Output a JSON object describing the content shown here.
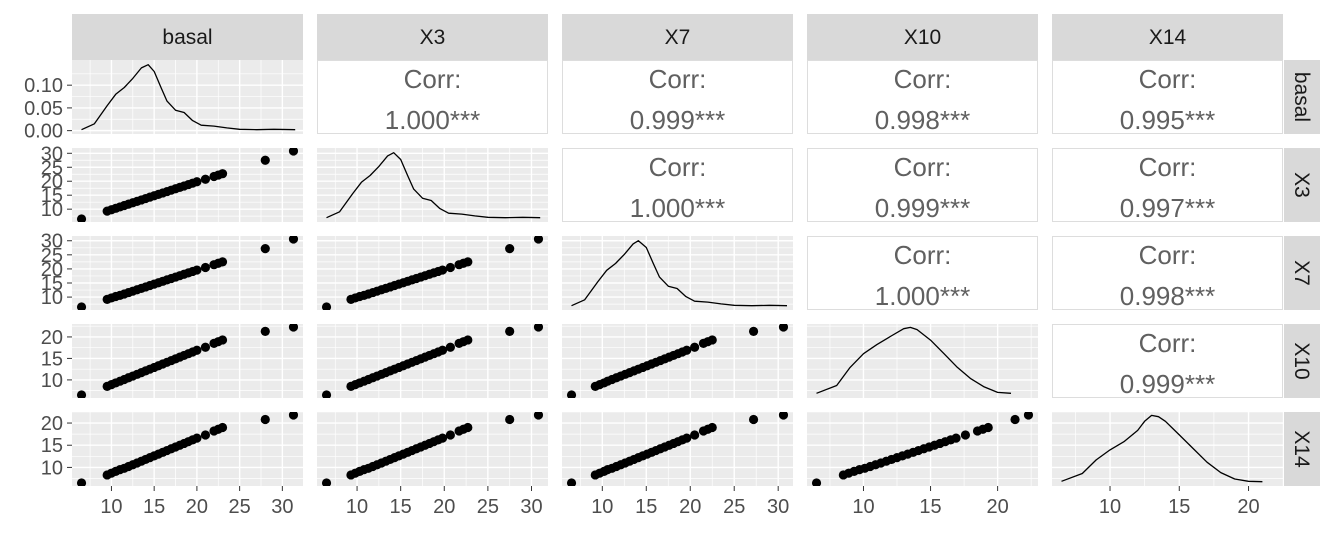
{
  "chart_data": {
    "type": "scatter-matrix",
    "variables": [
      "basal",
      "X3",
      "X7",
      "X10",
      "X14"
    ],
    "colors": {
      "panel_background": "#ebebeb",
      "grid": "#ffffff",
      "strip_background": "#d9d9d9",
      "strip_text": "#1a1a1a",
      "tick_text": "#4d4d4d",
      "corr_text": "#606060",
      "corr_border": "#dddddd",
      "points": "#000000",
      "density_line": "#000000"
    },
    "x_axis_ticks": {
      "basal": [
        "10",
        "15",
        "20",
        "25",
        "30"
      ],
      "X3": [
        "10",
        "15",
        "20",
        "25",
        "30"
      ],
      "X7": [
        "10",
        "15",
        "20",
        "25",
        "30"
      ],
      "X10": [
        "10",
        "15",
        "20"
      ],
      "X14": [
        "10",
        "15",
        "20"
      ]
    },
    "y_axis_ticks": {
      "basal": [
        "0.00",
        "0.05",
        "0.10"
      ],
      "X3": [
        "10",
        "15",
        "20",
        "25",
        "30"
      ],
      "X7": [
        "10",
        "15",
        "20",
        "25",
        "30"
      ],
      "X10": [
        "10",
        "15",
        "20"
      ],
      "X14": [
        "10",
        "15",
        "20"
      ]
    },
    "correlations": [
      {
        "row": "basal",
        "col": "X3",
        "label": "Corr:",
        "value": "1.000***"
      },
      {
        "row": "basal",
        "col": "X7",
        "label": "Corr:",
        "value": "0.999***"
      },
      {
        "row": "basal",
        "col": "X10",
        "label": "Corr:",
        "value": "0.998***"
      },
      {
        "row": "basal",
        "col": "X14",
        "label": "Corr:",
        "value": "0.995***"
      },
      {
        "row": "X3",
        "col": "X7",
        "label": "Corr:",
        "value": "1.000***"
      },
      {
        "row": "X3",
        "col": "X10",
        "label": "Corr:",
        "value": "0.999***"
      },
      {
        "row": "X3",
        "col": "X14",
        "label": "Corr:",
        "value": "0.997***"
      },
      {
        "row": "X7",
        "col": "X10",
        "label": "Corr:",
        "value": "1.000***"
      },
      {
        "row": "X7",
        "col": "X14",
        "label": "Corr:",
        "value": "0.998***"
      },
      {
        "row": "X10",
        "col": "X14",
        "label": "Corr:",
        "value": "0.999***"
      }
    ],
    "densities": [
      {
        "variable": "basal",
        "x": [
          6.5,
          8,
          9.5,
          10.5,
          11.5,
          12.5,
          13.5,
          14.3,
          15,
          15.8,
          16.5,
          17.5,
          18.5,
          19.5,
          20.5,
          22,
          23.5,
          25,
          27,
          29,
          31.5
        ],
        "y": [
          0.002,
          0.015,
          0.055,
          0.08,
          0.095,
          0.115,
          0.138,
          0.145,
          0.13,
          0.095,
          0.065,
          0.045,
          0.04,
          0.022,
          0.012,
          0.01,
          0.006,
          0.003,
          0.002,
          0.003,
          0.002
        ]
      },
      {
        "variable": "X3",
        "x": [
          6.5,
          8,
          9.5,
          10.5,
          11.5,
          12.5,
          13.5,
          14.2,
          15,
          15.8,
          16.5,
          17.5,
          18.5,
          19.5,
          20.5,
          22,
          23.5,
          25,
          27,
          29,
          31
        ],
        "y": [
          0.002,
          0.015,
          0.055,
          0.08,
          0.095,
          0.115,
          0.138,
          0.145,
          0.13,
          0.095,
          0.065,
          0.045,
          0.04,
          0.022,
          0.012,
          0.01,
          0.006,
          0.003,
          0.002,
          0.003,
          0.002
        ]
      },
      {
        "variable": "X7",
        "x": [
          6.5,
          8,
          9.5,
          10.5,
          11.5,
          12.5,
          13.5,
          14.1,
          15,
          15.8,
          16.5,
          17.5,
          18.5,
          19.5,
          20.5,
          22,
          23.5,
          25,
          27,
          29,
          31
        ],
        "y": [
          0.002,
          0.015,
          0.055,
          0.08,
          0.095,
          0.115,
          0.138,
          0.145,
          0.13,
          0.095,
          0.065,
          0.045,
          0.04,
          0.022,
          0.012,
          0.01,
          0.006,
          0.003,
          0.002,
          0.003,
          0.002
        ]
      },
      {
        "variable": "X10",
        "x": [
          6.5,
          8,
          9,
          10,
          11,
          12,
          13,
          13.5,
          14,
          15,
          16,
          17,
          18,
          19,
          20,
          21
        ],
        "y": [
          0.003,
          0.02,
          0.06,
          0.09,
          0.11,
          0.128,
          0.145,
          0.148,
          0.143,
          0.12,
          0.09,
          0.06,
          0.035,
          0.017,
          0.005,
          0.003
        ]
      },
      {
        "variable": "X14",
        "x": [
          6.5,
          8,
          9,
          10,
          11,
          12,
          12.5,
          13,
          13.5,
          14,
          15,
          16,
          17,
          18,
          19,
          20,
          21
        ],
        "y": [
          0.003,
          0.02,
          0.05,
          0.072,
          0.09,
          0.115,
          0.135,
          0.148,
          0.145,
          0.135,
          0.105,
          0.075,
          0.045,
          0.022,
          0.008,
          0.003,
          0.002
        ]
      }
    ],
    "observations": [
      {
        "basal": 6.5,
        "X3": 6.5,
        "X7": 6.5,
        "X10": 6.5,
        "X14": 6.5
      },
      {
        "basal": 9.5,
        "X3": 9.3,
        "X7": 9.2,
        "X10": 8.5,
        "X14": 8.3
      },
      {
        "basal": 10,
        "X3": 9.8,
        "X7": 9.7,
        "X10": 8.9,
        "X14": 8.7
      },
      {
        "basal": 10.5,
        "X3": 10.3,
        "X7": 10.2,
        "X10": 9.3,
        "X14": 9.1
      },
      {
        "basal": 11,
        "X3": 10.8,
        "X7": 10.6,
        "X10": 9.7,
        "X14": 9.5
      },
      {
        "basal": 11.5,
        "X3": 11.3,
        "X7": 11.1,
        "X10": 10.1,
        "X14": 9.8
      },
      {
        "basal": 12,
        "X3": 11.8,
        "X7": 11.6,
        "X10": 10.5,
        "X14": 10.2
      },
      {
        "basal": 12.5,
        "X3": 12.3,
        "X7": 12.1,
        "X10": 10.9,
        "X14": 10.6
      },
      {
        "basal": 13,
        "X3": 12.8,
        "X7": 12.6,
        "X10": 11.3,
        "X14": 11
      },
      {
        "basal": 13.5,
        "X3": 13.3,
        "X7": 13.1,
        "X10": 11.7,
        "X14": 11.4
      },
      {
        "basal": 14,
        "X3": 13.8,
        "X7": 13.6,
        "X10": 12.1,
        "X14": 11.8
      },
      {
        "basal": 14.5,
        "X3": 14.3,
        "X7": 14.1,
        "X10": 12.5,
        "X14": 12.2
      },
      {
        "basal": 15,
        "X3": 14.8,
        "X7": 14.6,
        "X10": 12.9,
        "X14": 12.6
      },
      {
        "basal": 15.5,
        "X3": 15.3,
        "X7": 15.1,
        "X10": 13.3,
        "X14": 13
      },
      {
        "basal": 16,
        "X3": 15.8,
        "X7": 15.6,
        "X10": 13.7,
        "X14": 13.4
      },
      {
        "basal": 16.5,
        "X3": 16.3,
        "X7": 16.1,
        "X10": 14.1,
        "X14": 13.8
      },
      {
        "basal": 17,
        "X3": 16.8,
        "X7": 16.6,
        "X10": 14.5,
        "X14": 14.2
      },
      {
        "basal": 17.5,
        "X3": 17.3,
        "X7": 17.1,
        "X10": 14.9,
        "X14": 14.6
      },
      {
        "basal": 18,
        "X3": 17.8,
        "X7": 17.6,
        "X10": 15.3,
        "X14": 15
      },
      {
        "basal": 18.5,
        "X3": 18.3,
        "X7": 18.1,
        "X10": 15.7,
        "X14": 15.4
      },
      {
        "basal": 19,
        "X3": 18.8,
        "X7": 18.6,
        "X10": 16.1,
        "X14": 15.8
      },
      {
        "basal": 19.5,
        "X3": 19.3,
        "X7": 19.1,
        "X10": 16.5,
        "X14": 16.2
      },
      {
        "basal": 20,
        "X3": 19.8,
        "X7": 19.6,
        "X10": 16.9,
        "X14": 16.6
      },
      {
        "basal": 21,
        "X3": 20.7,
        "X7": 20.5,
        "X10": 17.6,
        "X14": 17.3
      },
      {
        "basal": 22,
        "X3": 21.7,
        "X7": 21.5,
        "X10": 18.5,
        "X14": 18.2
      },
      {
        "basal": 22.5,
        "X3": 22.2,
        "X7": 22,
        "X10": 18.9,
        "X14": 18.6
      },
      {
        "basal": 23,
        "X3": 22.7,
        "X7": 22.5,
        "X10": 19.3,
        "X14": 19
      },
      {
        "basal": 28,
        "X3": 27.5,
        "X7": 27.2,
        "X10": 21.3,
        "X14": 20.8
      },
      {
        "basal": 31.3,
        "X3": 30.8,
        "X7": 30.6,
        "X10": 22.3,
        "X14": 21.8
      }
    ]
  }
}
